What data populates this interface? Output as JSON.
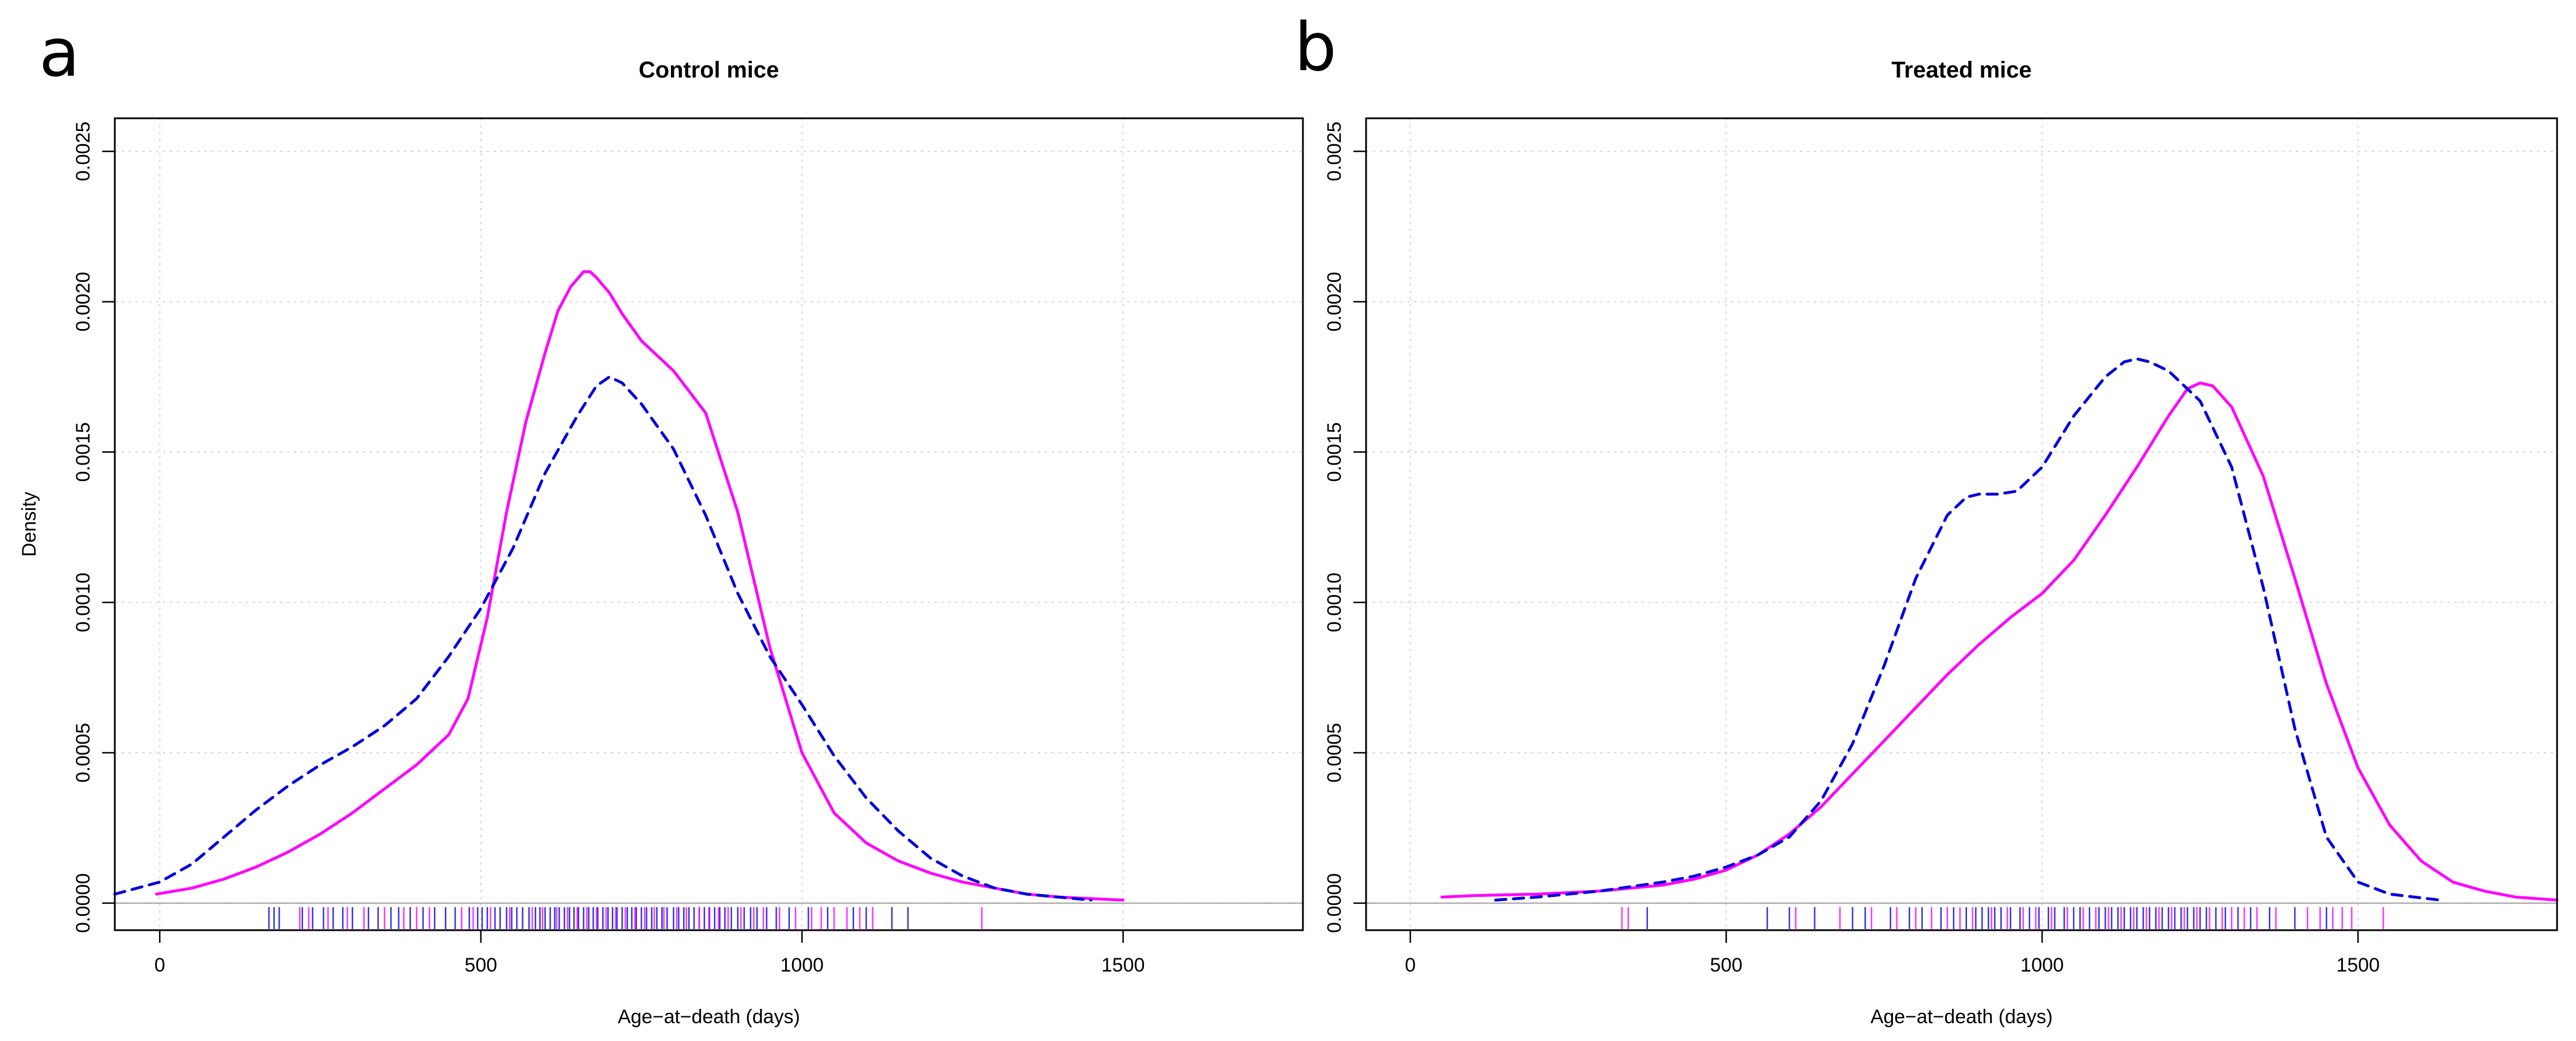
{
  "colors": {
    "magenta": "#ff00ff",
    "blue": "#0000dd",
    "grid": "#d4d4d4",
    "zero_line": "#a0a0a0",
    "frame": "#000000"
  },
  "chart_data": [
    {
      "type": "line",
      "panel_letter": "a",
      "title": "Control mice",
      "xlabel": "Age−at−death (days)",
      "ylabel": "Density",
      "xlim": [
        -70,
        1780
      ],
      "ylim": [
        -9e-05,
        0.00261
      ],
      "xticks": [
        0,
        500,
        1000,
        1500
      ],
      "xtick_labels": [
        "0",
        "500",
        "1000",
        "1500"
      ],
      "yticks": [
        0.0,
        0.0005,
        0.001,
        0.0015,
        0.002,
        0.0025
      ],
      "ytick_labels": [
        "0.0000",
        "0.0005",
        "0.0010",
        "0.0015",
        "0.0020",
        "0.0025"
      ],
      "show_ylabel": true,
      "grid": true,
      "series": [
        {
          "style": "solid",
          "color": "magenta",
          "x": [
            -5,
            50,
            100,
            150,
            200,
            250,
            300,
            350,
            400,
            450,
            480,
            510,
            540,
            570,
            600,
            620,
            640,
            660,
            670,
            680,
            700,
            720,
            750,
            800,
            850,
            900,
            950,
            1000,
            1050,
            1100,
            1150,
            1200,
            1250,
            1300,
            1350,
            1400,
            1450,
            1500
          ],
          "y": [
            3e-05,
            5e-05,
            8e-05,
            0.00012,
            0.00017,
            0.00023,
            0.0003,
            0.00038,
            0.00046,
            0.00056,
            0.00068,
            0.00095,
            0.0013,
            0.0016,
            0.00183,
            0.00197,
            0.00205,
            0.0021,
            0.0021,
            0.00208,
            0.00203,
            0.00196,
            0.00187,
            0.00177,
            0.00163,
            0.0013,
            0.00085,
            0.0005,
            0.0003,
            0.0002,
            0.00014,
            0.0001,
            7e-05,
            5e-05,
            3e-05,
            2e-05,
            1.5e-05,
            1e-05
          ]
        },
        {
          "style": "dashed",
          "color": "blue",
          "x": [
            -70,
            0,
            50,
            100,
            150,
            200,
            250,
            300,
            350,
            400,
            450,
            500,
            550,
            600,
            650,
            680,
            700,
            720,
            750,
            800,
            850,
            900,
            950,
            1000,
            1050,
            1100,
            1150,
            1200,
            1250,
            1300,
            1350,
            1400,
            1450
          ],
          "y": [
            3e-05,
            7e-05,
            0.00013,
            0.00022,
            0.00031,
            0.00039,
            0.00046,
            0.00052,
            0.00059,
            0.00068,
            0.00082,
            0.00098,
            0.00118,
            0.00143,
            0.00162,
            0.00172,
            0.00175,
            0.00173,
            0.00166,
            0.00151,
            0.00129,
            0.00103,
            0.00082,
            0.00066,
            0.00049,
            0.00035,
            0.00024,
            0.00015,
            9e-05,
            5e-05,
            3e-05,
            2e-05,
            1e-05
          ]
        }
      ],
      "rug": [
        {
          "color": "blue",
          "x": [
            170,
            178,
            186,
            222,
            238,
            255,
            270,
            285,
            300,
            325,
            340,
            360,
            372,
            390,
            410,
            428,
            445,
            460,
            482,
            495,
            502,
            510,
            522,
            530,
            540,
            548,
            556,
            565,
            575,
            585,
            592,
            600,
            608,
            615,
            622,
            630,
            638,
            645,
            652,
            660,
            668,
            675,
            682,
            690,
            698,
            705,
            712,
            720,
            728,
            735,
            742,
            750,
            758,
            766,
            774,
            782,
            790,
            800,
            808,
            816,
            824,
            832,
            840,
            848,
            856,
            864,
            872,
            880,
            890,
            900,
            910,
            920,
            930,
            945,
            960,
            980,
            1010,
            1040,
            1080,
            1100,
            1140,
            1165
          ]
        },
        {
          "color": "magenta",
          "x": [
            218,
            232,
            262,
            292,
            318,
            350,
            380,
            400,
            420,
            470,
            488,
            515,
            545,
            580,
            596,
            618,
            635,
            650,
            665,
            680,
            695,
            710,
            725,
            740,
            755,
            770,
            785,
            805,
            820,
            840,
            855,
            870,
            885,
            905,
            925,
            940,
            965,
            990,
            1015,
            1030,
            1050,
            1070,
            1090,
            1110,
            1280
          ]
        }
      ]
    },
    {
      "type": "line",
      "panel_letter": "b",
      "title": "Treated mice",
      "xlabel": "Age−at−death (days)",
      "ylabel": "",
      "xlim": [
        -70,
        1815
      ],
      "ylim": [
        -9e-05,
        0.00261
      ],
      "xticks": [
        0,
        500,
        1000,
        1500
      ],
      "xtick_labels": [
        "0",
        "500",
        "1000",
        "1500"
      ],
      "yticks": [
        0.0,
        0.0005,
        0.001,
        0.0015,
        0.002,
        0.0025
      ],
      "ytick_labels": [
        "0.0000",
        "0.0005",
        "0.0010",
        "0.0015",
        "0.0020",
        "0.0025"
      ],
      "show_ylabel": false,
      "grid": true,
      "series": [
        {
          "style": "solid",
          "color": "magenta",
          "x": [
            50,
            100,
            200,
            300,
            400,
            450,
            500,
            550,
            600,
            650,
            700,
            750,
            800,
            850,
            900,
            950,
            1000,
            1050,
            1100,
            1150,
            1200,
            1230,
            1250,
            1270,
            1300,
            1350,
            1400,
            1450,
            1500,
            1550,
            1600,
            1650,
            1700,
            1750,
            1815
          ],
          "y": [
            2e-05,
            2.5e-05,
            3e-05,
            4e-05,
            6e-05,
            8e-05,
            0.00011,
            0.00016,
            0.00023,
            0.00032,
            0.00043,
            0.00054,
            0.00065,
            0.00076,
            0.00086,
            0.00095,
            0.00103,
            0.00114,
            0.00129,
            0.00145,
            0.00162,
            0.00171,
            0.00173,
            0.00172,
            0.00165,
            0.00142,
            0.00108,
            0.00073,
            0.00045,
            0.00026,
            0.00014,
            7e-05,
            4e-05,
            2e-05,
            1e-05
          ]
        },
        {
          "style": "dashed",
          "color": "blue",
          "x": [
            135,
            200,
            300,
            400,
            450,
            500,
            550,
            600,
            650,
            700,
            750,
            800,
            850,
            880,
            900,
            930,
            960,
            1000,
            1050,
            1100,
            1130,
            1150,
            1170,
            1200,
            1250,
            1300,
            1350,
            1400,
            1450,
            1500,
            1550,
            1630
          ],
          "y": [
            1e-05,
            2e-05,
            4e-05,
            7e-05,
            9e-05,
            0.00012,
            0.00016,
            0.00022,
            0.00034,
            0.00053,
            0.00079,
            0.00108,
            0.00129,
            0.00135,
            0.00136,
            0.00136,
            0.00137,
            0.00145,
            0.00162,
            0.00175,
            0.0018,
            0.00181,
            0.0018,
            0.00177,
            0.00167,
            0.00145,
            0.00105,
            0.00058,
            0.00022,
            7e-05,
            3e-05,
            1e-05
          ]
        }
      ],
      "rug": [
        {
          "color": "blue",
          "x": [
            375,
            565,
            600,
            640,
            700,
            720,
            760,
            790,
            810,
            840,
            860,
            880,
            895,
            905,
            915,
            925,
            935,
            950,
            965,
            980,
            995,
            1010,
            1020,
            1035,
            1050,
            1060,
            1075,
            1090,
            1100,
            1110,
            1120,
            1130,
            1140,
            1150,
            1160,
            1170,
            1180,
            1190,
            1200,
            1210,
            1220,
            1230,
            1240,
            1250,
            1260,
            1275,
            1290,
            1310,
            1330,
            1360,
            1400,
            1450
          ]
        },
        {
          "color": "magenta",
          "x": [
            335,
            345,
            610,
            680,
            730,
            770,
            800,
            825,
            850,
            870,
            890,
            920,
            945,
            970,
            990,
            1015,
            1040,
            1065,
            1085,
            1105,
            1125,
            1145,
            1165,
            1185,
            1205,
            1225,
            1245,
            1265,
            1285,
            1300,
            1320,
            1340,
            1370,
            1420,
            1440,
            1460,
            1475,
            1490,
            1540
          ]
        }
      ]
    }
  ]
}
